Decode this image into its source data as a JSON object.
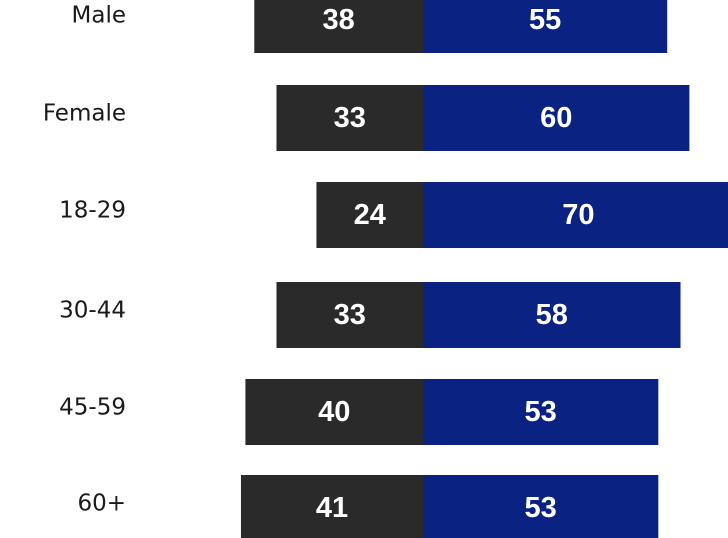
{
  "chart_data": {
    "type": "diverging_bar",
    "categories": [
      "Male",
      "Female",
      "18-29",
      "30-44",
      "45-59",
      "60+"
    ],
    "series": [
      {
        "color": "#2a2a2a",
        "values": [
          38,
          33,
          24,
          33,
          40,
          41
        ]
      },
      {
        "color": "#0a2382",
        "values": [
          55,
          60,
          70,
          58,
          53,
          53
        ]
      }
    ]
  }
}
